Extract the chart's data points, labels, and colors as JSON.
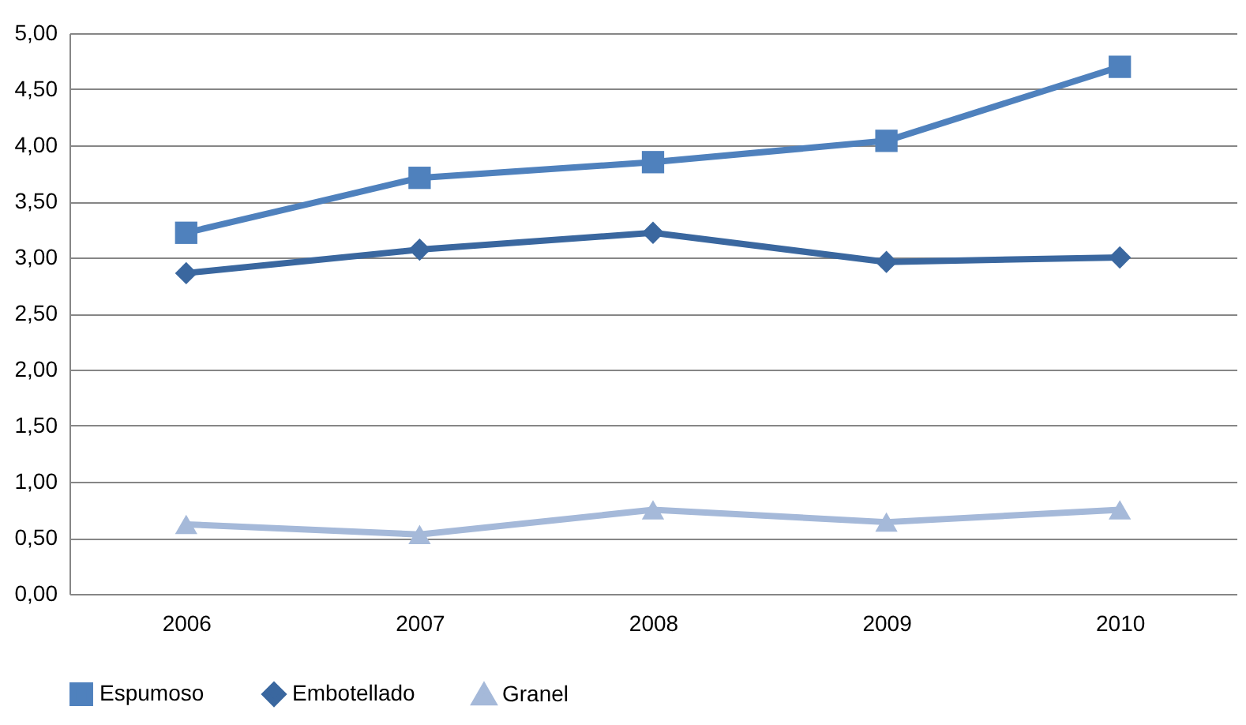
{
  "chart_data": {
    "type": "line",
    "categories": [
      "2006",
      "2007",
      "2008",
      "2009",
      "2010"
    ],
    "series": [
      {
        "name": "Espumoso",
        "color": "#4f81bd",
        "marker": "square",
        "values": [
          3.22,
          3.71,
          3.85,
          4.04,
          4.7
        ]
      },
      {
        "name": "Embotellado",
        "color": "#3a679f",
        "marker": "diamond",
        "values": [
          2.86,
          3.07,
          3.22,
          2.96,
          3.0
        ]
      },
      {
        "name": "Granel",
        "color": "#a5b9d9",
        "marker": "triangle",
        "values": [
          0.62,
          0.53,
          0.75,
          0.64,
          0.75
        ]
      }
    ],
    "ylim": [
      0,
      5
    ],
    "yticks": [
      {
        "value": 0,
        "label": "0,00"
      },
      {
        "value": 0.5,
        "label": "0,50"
      },
      {
        "value": 1,
        "label": "1,00"
      },
      {
        "value": 1.5,
        "label": "1,50"
      },
      {
        "value": 2,
        "label": "2,00"
      },
      {
        "value": 2.5,
        "label": "2,50"
      },
      {
        "value": 3,
        "label": "3,00"
      },
      {
        "value": 3.5,
        "label": "3,50"
      },
      {
        "value": 4,
        "label": "4,00"
      },
      {
        "value": 4.5,
        "label": "4,50"
      },
      {
        "value": 5,
        "label": "5,00"
      }
    ],
    "grid": "y",
    "legend": "bottom",
    "line_style": "solid"
  }
}
